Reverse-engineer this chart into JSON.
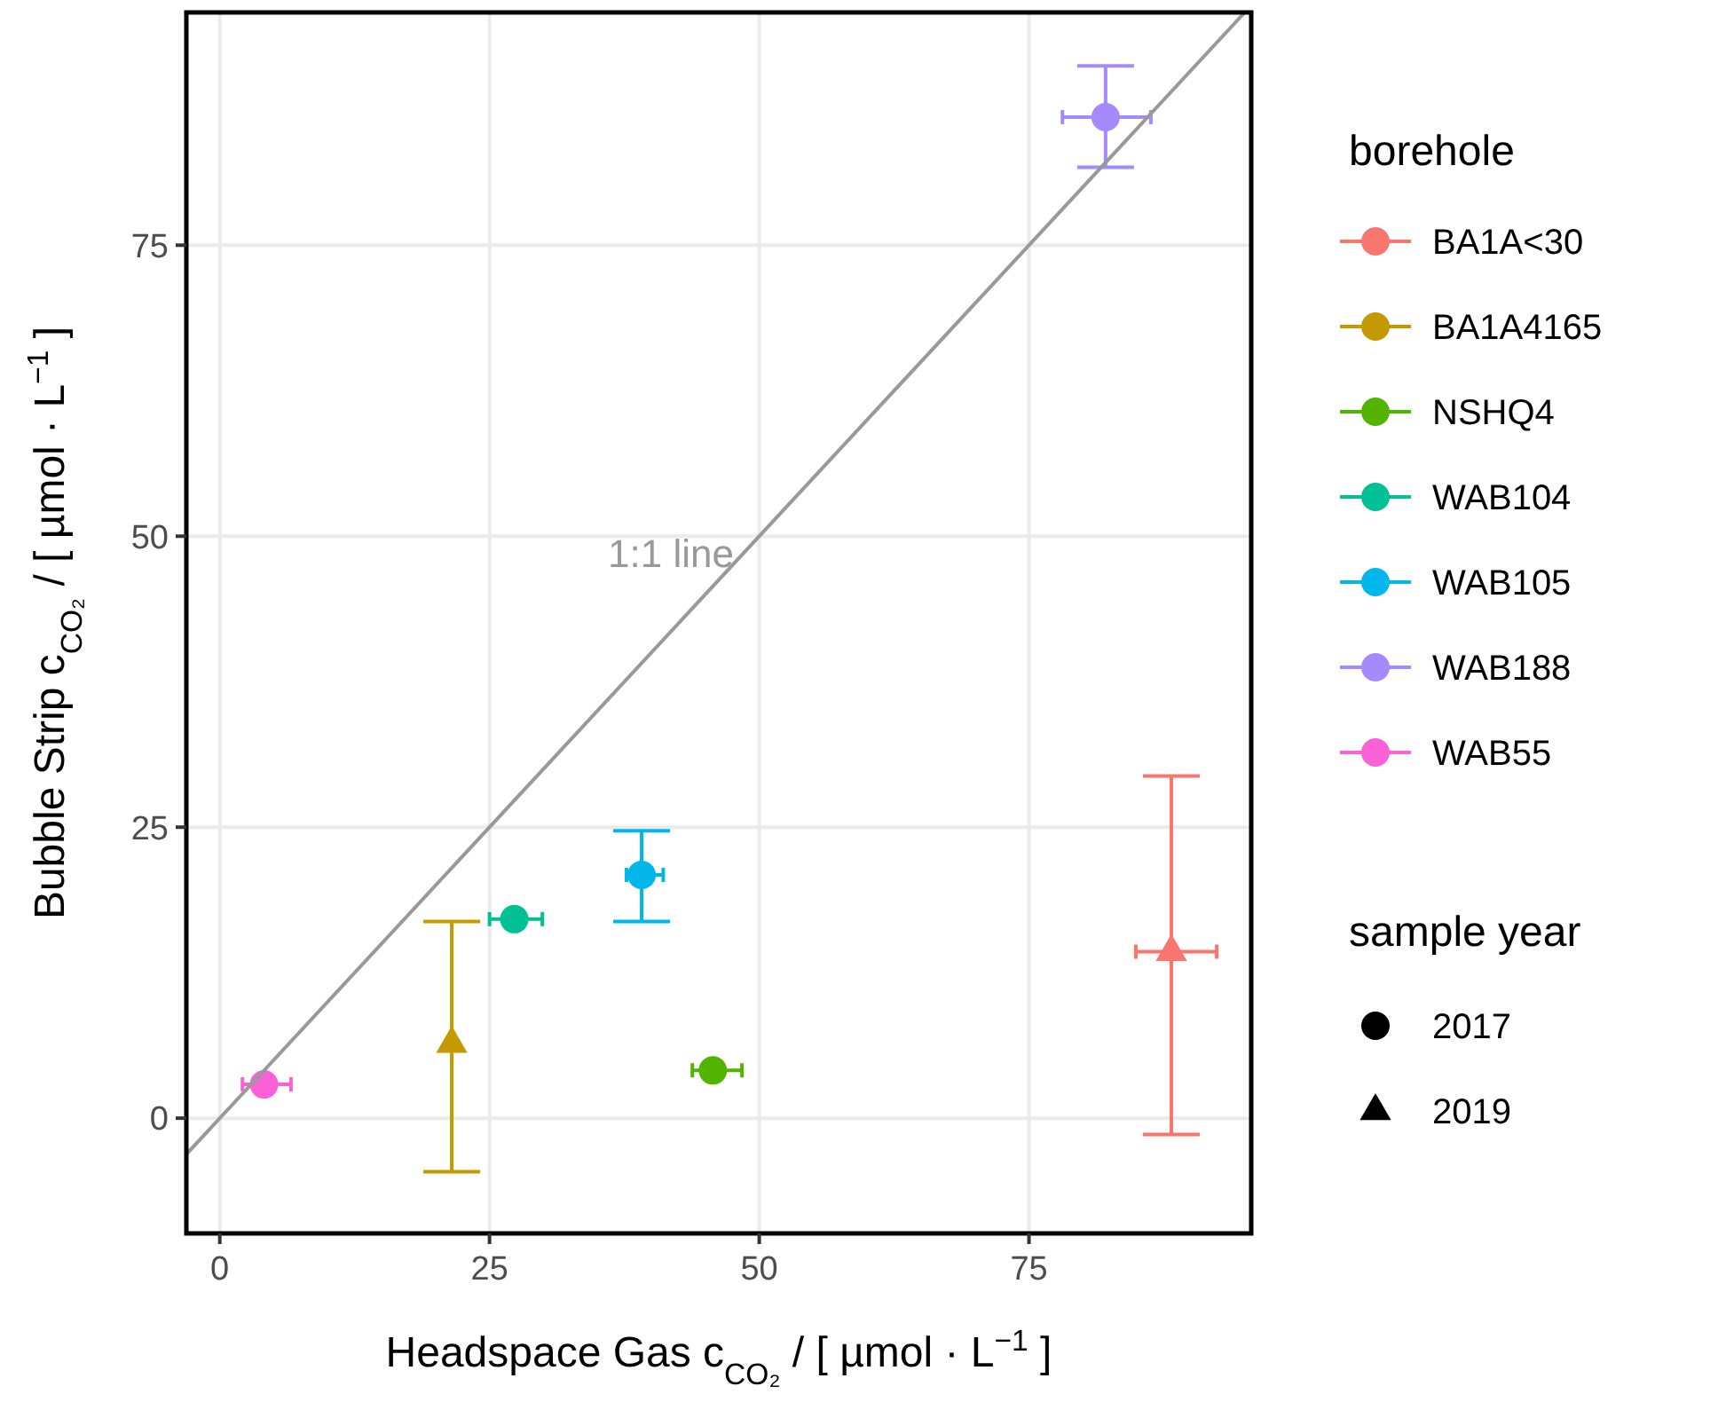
{
  "chart_data": {
    "type": "scatter",
    "xlabel": "Headspace Gas c$_{CO₂}$ / [ µmol · L$^{−1}$ ]",
    "ylabel": "Bubble Strip c$_{CO₂}$ / [ µmol · L$^{−1}$ ]",
    "legend_title": "borehole",
    "legend": "right",
    "grid": true,
    "xlim": [
      -3.1,
      95.6
    ],
    "xticks": [
      0,
      25,
      50,
      75
    ],
    "ylim": [
      -9.9,
      95
    ],
    "yticks": [
      0,
      25,
      50,
      75
    ],
    "annotations": [
      "1:1 line",
      "sample year",
      "2017",
      "2019"
    ],
    "series": [
      {
        "name": "BA1A<30",
        "color": "#f8766d",
        "marker": "triangle",
        "x": [
          88.2
        ],
        "values": [
          14.3
        ],
        "errors": [
          [
            -1.4,
            29.4
          ]
        ],
        "xerrors": [
          [
            84.9,
            92.4
          ]
        ]
      },
      {
        "name": "BA1A4165",
        "color": "#c49a00",
        "marker": "triangle",
        "x": [
          21.5
        ],
        "values": [
          6.4
        ],
        "errors": [
          [
            -4.6,
            16.9
          ]
        ],
        "xerrors": [
          null
        ]
      },
      {
        "name": "NSHQ4",
        "color": "#53b400",
        "marker": "circle",
        "x": [
          45.7
        ],
        "values": [
          4.1
        ],
        "errors": [
          null
        ],
        "xerrors": [
          [
            43.8,
            48.4
          ]
        ]
      },
      {
        "name": "WAB104",
        "color": "#00c094",
        "marker": "circle",
        "x": [
          27.3
        ],
        "values": [
          17.1
        ],
        "errors": [
          null
        ],
        "xerrors": [
          [
            25.0,
            29.9
          ]
        ]
      },
      {
        "name": "WAB105",
        "color": "#00b6eb",
        "marker": "circle",
        "x": [
          39.1
        ],
        "values": [
          20.9
        ],
        "errors": [
          [
            16.9,
            24.7
          ]
        ],
        "xerrors": [
          [
            37.7,
            41.1
          ]
        ]
      },
      {
        "name": "WAB188",
        "color": "#a58aff",
        "marker": "circle",
        "x": [
          82.1
        ],
        "values": [
          86.0
        ],
        "errors": [
          [
            81.7,
            90.4
          ]
        ],
        "xerrors": [
          [
            78.1,
            86.3
          ]
        ]
      },
      {
        "name": "WAB55",
        "color": "#fb61d7",
        "marker": "circle",
        "x": [
          4.1
        ],
        "values": [
          2.9
        ],
        "errors": [
          null
        ],
        "xerrors": [
          [
            2.1,
            6.6
          ]
        ]
      },
      {
        "type": "line",
        "color": "#999999",
        "line_style": "solid",
        "x": [
          -3.1,
          95
        ],
        "values": [
          -3.1,
          95
        ]
      }
    ]
  }
}
